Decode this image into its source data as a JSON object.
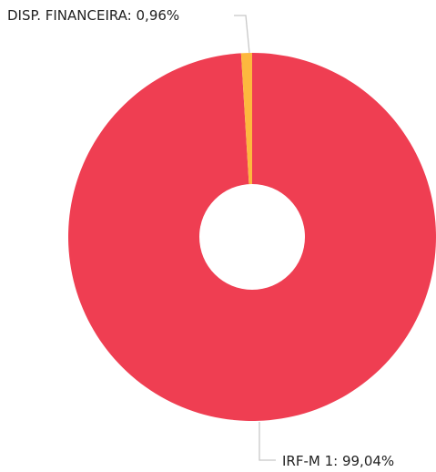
{
  "chart_data": {
    "type": "pie",
    "donut": true,
    "title": "",
    "slices": [
      {
        "label": "IRF-M 1",
        "value": 99.04,
        "display": "IRF-M 1: 99,04%",
        "color": "#ef3e52"
      },
      {
        "label": "DISP. FINANCEIRA",
        "value": 0.96,
        "display": "DISP. FINANCEIRA: 0,96%",
        "color": "#fdb83e"
      }
    ],
    "legend": "none",
    "labels": "outside-with-leader-lines"
  }
}
